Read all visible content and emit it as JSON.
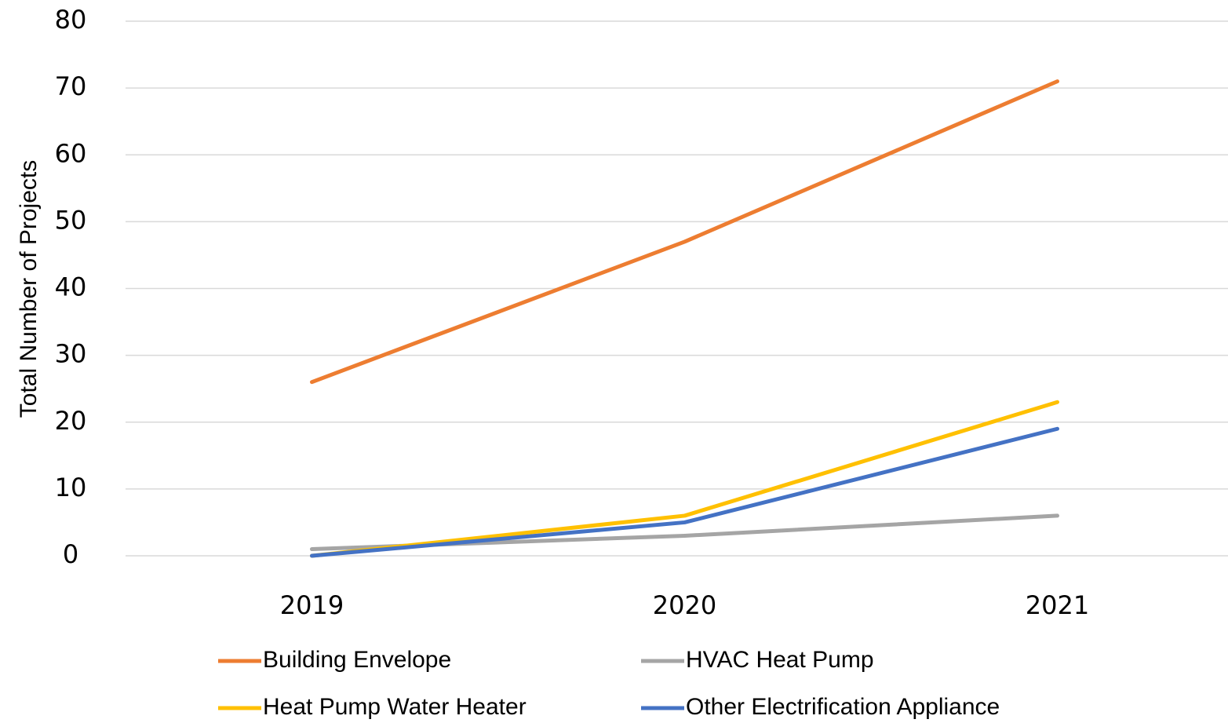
{
  "chart_data": {
    "type": "line",
    "y_label": "Total Number of Projects",
    "categories": [
      "2019",
      "2020",
      "2021"
    ],
    "series": [
      {
        "name": "Building Envelope",
        "color": "#ed7d31",
        "values": [
          26,
          47,
          71
        ]
      },
      {
        "name": "HVAC Heat Pump",
        "color": "#a5a5a5",
        "values": [
          1,
          3,
          6
        ]
      },
      {
        "name": "Heat Pump Water Heater",
        "color": "#ffc000",
        "values": [
          0,
          6,
          23
        ]
      },
      {
        "name": "Other Electrification Appliance",
        "color": "#4472c4",
        "values": [
          0,
          5,
          19
        ]
      }
    ],
    "ylim": [
      0,
      80
    ],
    "yticks": [
      0,
      10,
      20,
      30,
      40,
      50,
      60,
      70,
      80
    ],
    "grid": true,
    "legend": "bottom"
  }
}
